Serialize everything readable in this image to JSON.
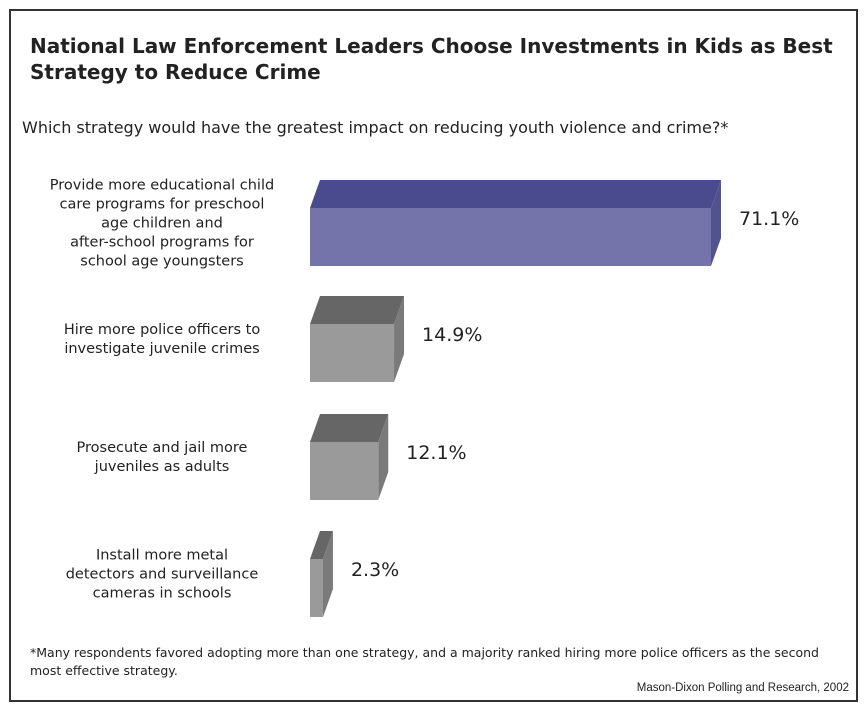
{
  "title": "National Law Enforcement Leaders Choose Investments in Kids as Best Strategy to Reduce Crime",
  "question": "Which strategy would have the greatest impact on reducing youth violence and crime?*",
  "footnote": "*Many respondents favored adopting more than one strategy, and a majority ranked hiring more police officers as the second most effective strategy.",
  "source": "Mason-Dixon Polling and Research, 2002",
  "colors": {
    "highlight_front": "#7474aa",
    "highlight_top": "#4a4a8e",
    "highlight_side": "#52528f",
    "gray_front": "#9a9a9a",
    "gray_top": "#666666",
    "gray_side": "#7a7a7a"
  },
  "chart_data": {
    "type": "bar",
    "orientation": "horizontal",
    "style": "3d",
    "categories": [
      [
        "Provide more educational child",
        "care programs for preschool",
        "age children and",
        "after-school programs for",
        "school age youngsters"
      ],
      [
        "Hire more police officers to",
        "investigate juvenile crimes"
      ],
      [
        "Prosecute and jail more",
        "juveniles as adults"
      ],
      [
        "Install more metal",
        "detectors and surveillance",
        "cameras in schools"
      ]
    ],
    "values": [
      71.1,
      14.9,
      12.1,
      2.3
    ],
    "value_labels": [
      "71.1%",
      "14.9%",
      "12.1%",
      "2.3%"
    ],
    "highlighted": [
      true,
      false,
      false,
      false
    ],
    "grid": false,
    "legend": "none"
  }
}
